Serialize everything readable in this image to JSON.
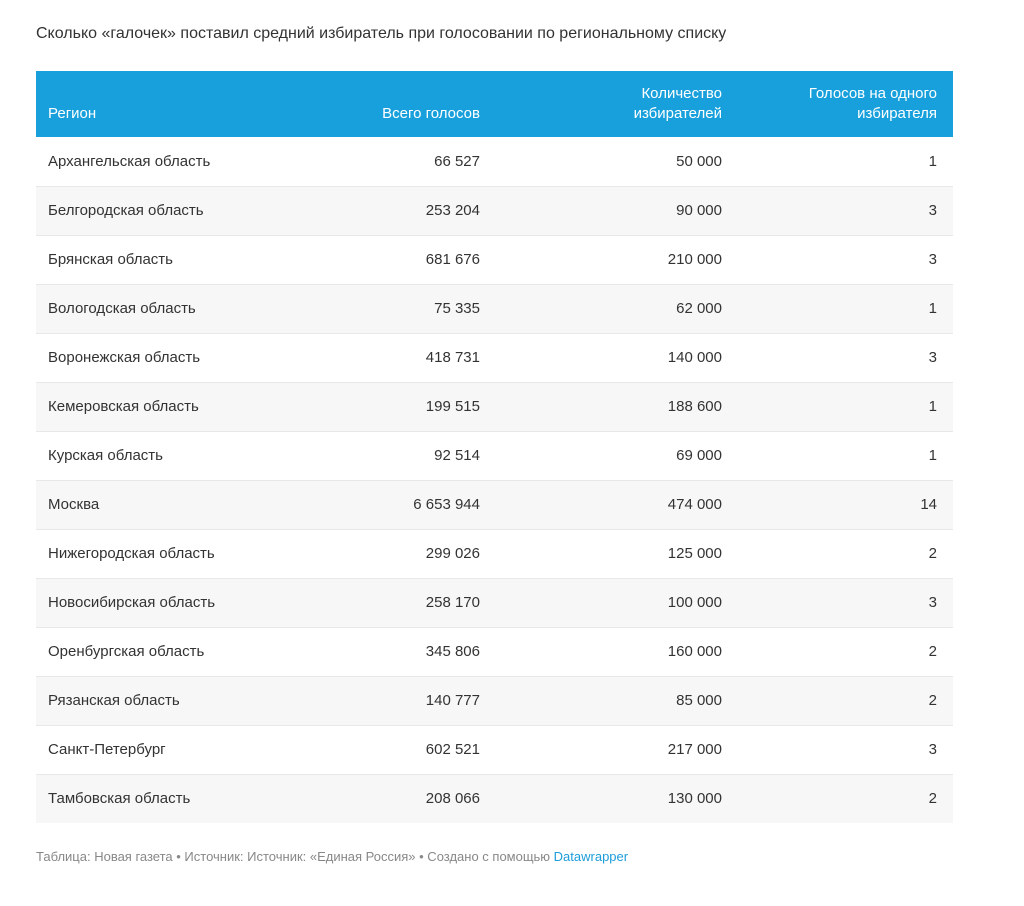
{
  "title": "Сколько «галочек» поставил средний избиратель при голосовании по региональному списку",
  "colors": {
    "header_bg": "#18a0dc",
    "header_text": "#ffffff",
    "row_alt_bg": "#f7f7f7",
    "row_border": "#e8e8e8",
    "body_text": "#333333",
    "footer_text": "#888888",
    "link": "#1d9dd9"
  },
  "table": {
    "columns": [
      {
        "label": "Регион",
        "align": "left"
      },
      {
        "label": "Всего голосов",
        "align": "right"
      },
      {
        "label": "Количество\nизбирателей",
        "align": "right"
      },
      {
        "label": "Голосов на одного\nизбирателя",
        "align": "right"
      }
    ],
    "rows": [
      [
        "Архангельская область",
        "66 527",
        "50 000",
        "1"
      ],
      [
        "Белгородская область",
        "253 204",
        "90 000",
        "3"
      ],
      [
        "Брянская область",
        "681 676",
        "210 000",
        "3"
      ],
      [
        "Вологодская область",
        "75 335",
        "62 000",
        "1"
      ],
      [
        "Воронежская область",
        "418 731",
        "140 000",
        "3"
      ],
      [
        "Кемеровская область",
        "199 515",
        "188 600",
        "1"
      ],
      [
        "Курская область",
        "92 514",
        "69 000",
        "1"
      ],
      [
        "Москва",
        "6 653 944",
        "474 000",
        "14"
      ],
      [
        "Нижегородская область",
        "299 026",
        "125 000",
        "2"
      ],
      [
        "Новосибирская область",
        "258 170",
        "100 000",
        "3"
      ],
      [
        "Оренбургская область",
        "345 806",
        "160 000",
        "2"
      ],
      [
        "Рязанская область",
        "140 777",
        "85 000",
        "2"
      ],
      [
        "Санкт-Петербург",
        "602 521",
        "217 000",
        "3"
      ],
      [
        "Тамбовская область",
        "208 066",
        "130 000",
        "2"
      ]
    ]
  },
  "footer": {
    "prefix": "Таблица: Новая газета • Источник: Источник: «Единая Россия» • Создано с помощью ",
    "link_label": "Datawrapper"
  },
  "chart_data": {
    "type": "table",
    "title": "Сколько «галочек» поставил средний избиратель при голосовании по региональному списку",
    "columns": [
      "Регион",
      "Всего голосов",
      "Количество избирателей",
      "Голосов на одного избирателя"
    ],
    "rows": [
      [
        "Архангельская область",
        66527,
        50000,
        1
      ],
      [
        "Белгородская область",
        253204,
        90000,
        3
      ],
      [
        "Брянская область",
        681676,
        210000,
        3
      ],
      [
        "Вологодская область",
        75335,
        62000,
        1
      ],
      [
        "Воронежская область",
        418731,
        140000,
        3
      ],
      [
        "Кемеровская область",
        199515,
        188600,
        1
      ],
      [
        "Курская область",
        92514,
        69000,
        1
      ],
      [
        "Москва",
        6653944,
        474000,
        14
      ],
      [
        "Нижегородская область",
        299026,
        125000,
        2
      ],
      [
        "Новосибирская область",
        258170,
        100000,
        3
      ],
      [
        "Оренбургская область",
        345806,
        160000,
        2
      ],
      [
        "Рязанская область",
        140777,
        85000,
        2
      ],
      [
        "Санкт-Петербург",
        602521,
        217000,
        3
      ],
      [
        "Тамбовская область",
        208066,
        130000,
        2
      ]
    ],
    "notes": "Attribution: Таблица: Новая газета • Источник: Источник: «Единая Россия» • Создано с помощью Datawrapper"
  }
}
